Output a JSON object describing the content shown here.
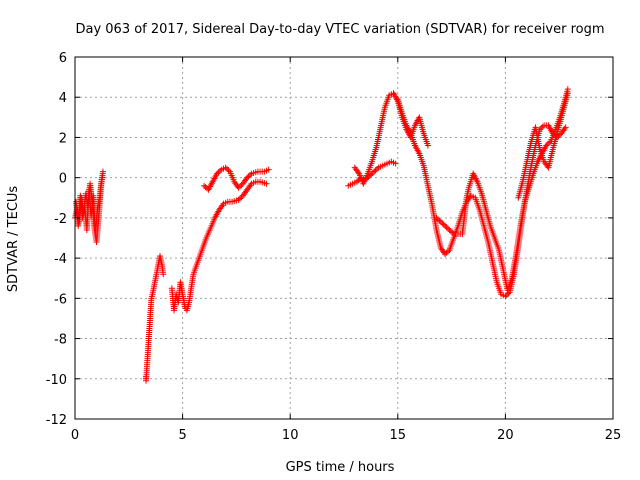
{
  "chart_data": {
    "type": "scatter",
    "title": "Day 063 of 2017, Sidereal Day-to-day VTEC variation (SDTVAR) for receiver rogm",
    "xlabel": "GPS time / hours",
    "ylabel": "SDTVAR / TECUs",
    "xlim": [
      0,
      25
    ],
    "ylim": [
      -12,
      6
    ],
    "xticks": [
      0,
      5,
      10,
      15,
      20,
      25
    ],
    "xtick_labels": [
      "0",
      "5",
      "10",
      "15",
      "20",
      "25"
    ],
    "yticks": [
      -12,
      -10,
      -8,
      -6,
      -4,
      -2,
      0,
      2,
      4,
      6
    ],
    "ytick_labels": [
      "-12",
      "-10",
      "-8",
      "-6",
      "-4",
      "-2",
      "0",
      "2",
      "4",
      "6"
    ],
    "grid": true,
    "marker": "+",
    "color": "#ff0000",
    "series": [
      {
        "name": "",
        "segments": [
          [
            [
              0.0,
              -2.0
            ],
            [
              0.1,
              -1.5
            ],
            [
              0.2,
              -2.2
            ],
            [
              0.3,
              -1.0
            ],
            [
              0.4,
              -1.8
            ],
            [
              0.5,
              -0.8
            ],
            [
              0.6,
              -1.5
            ],
            [
              0.7,
              -0.3
            ],
            [
              0.8,
              -1.2
            ],
            [
              0.9,
              -2.5
            ],
            [
              1.0,
              -3.2
            ],
            [
              1.1,
              -2.0
            ],
            [
              1.2,
              -0.5
            ],
            [
              1.3,
              0.3
            ]
          ],
          [
            [
              0.05,
              -1.2
            ],
            [
              0.15,
              -2.4
            ],
            [
              0.25,
              -0.9
            ],
            [
              0.35,
              -2.0
            ],
            [
              0.45,
              -1.4
            ],
            [
              0.55,
              -2.6
            ],
            [
              0.65,
              -0.6
            ],
            [
              0.75,
              -1.9
            ],
            [
              0.85,
              -0.9
            ],
            [
              0.95,
              -2.8
            ],
            [
              1.05,
              -1.5
            ],
            [
              1.15,
              -1.0
            ],
            [
              1.25,
              0.0
            ]
          ],
          [
            [
              3.3,
              -9.9
            ],
            [
              3.3,
              -10.1
            ],
            [
              3.55,
              -6.0
            ],
            [
              3.6,
              -5.8
            ],
            [
              3.95,
              -3.9
            ],
            [
              4.05,
              -4.4
            ],
            [
              4.1,
              -4.8
            ]
          ],
          [
            [
              4.5,
              -5.5
            ],
            [
              4.6,
              -6.6
            ],
            [
              4.7,
              -5.8
            ],
            [
              4.8,
              -6.2
            ],
            [
              4.9,
              -5.2
            ],
            [
              5.0,
              -5.8
            ],
            [
              5.1,
              -6.4
            ],
            [
              5.2,
              -6.6
            ],
            [
              5.3,
              -6.2
            ],
            [
              5.4,
              -5.5
            ],
            [
              5.5,
              -4.8
            ],
            [
              5.7,
              -4.2
            ],
            [
              5.9,
              -3.6
            ],
            [
              6.1,
              -3.0
            ],
            [
              6.3,
              -2.5
            ],
            [
              6.5,
              -2.0
            ],
            [
              6.7,
              -1.6
            ],
            [
              6.9,
              -1.3
            ],
            [
              7.1,
              -1.2
            ],
            [
              7.3,
              -1.2
            ],
            [
              7.6,
              -1.1
            ],
            [
              7.8,
              -0.9
            ],
            [
              8.0,
              -0.6
            ],
            [
              8.2,
              -0.3
            ],
            [
              8.4,
              -0.2
            ],
            [
              8.6,
              -0.2
            ],
            [
              8.9,
              -0.3
            ]
          ],
          [
            [
              6.0,
              -0.4
            ],
            [
              6.2,
              -0.6
            ],
            [
              6.4,
              -0.2
            ],
            [
              6.6,
              0.2
            ],
            [
              6.8,
              0.4
            ],
            [
              7.0,
              0.5
            ],
            [
              7.2,
              0.3
            ],
            [
              7.4,
              -0.2
            ],
            [
              7.6,
              -0.5
            ],
            [
              7.8,
              -0.3
            ],
            [
              8.0,
              0.0
            ],
            [
              8.2,
              0.2
            ],
            [
              8.5,
              0.3
            ],
            [
              8.8,
              0.3
            ],
            [
              9.0,
              0.4
            ]
          ],
          [
            [
              12.7,
              -0.4
            ],
            [
              12.9,
              -0.3
            ],
            [
              13.1,
              -0.2
            ],
            [
              13.3,
              0.0
            ],
            [
              13.5,
              -0.1
            ],
            [
              13.7,
              0.1
            ],
            [
              13.9,
              0.3
            ],
            [
              14.1,
              0.5
            ],
            [
              14.3,
              0.6
            ],
            [
              14.5,
              0.7
            ],
            [
              14.7,
              0.8
            ],
            [
              14.9,
              0.7
            ]
          ],
          [
            [
              13.0,
              0.5
            ],
            [
              13.2,
              0.2
            ],
            [
              13.4,
              -0.3
            ],
            [
              13.6,
              0.2
            ],
            [
              13.8,
              0.8
            ],
            [
              14.0,
              1.5
            ],
            [
              14.2,
              2.5
            ],
            [
              14.4,
              3.5
            ],
            [
              14.6,
              4.1
            ],
            [
              14.8,
              4.2
            ],
            [
              15.0,
              3.8
            ],
            [
              15.2,
              3.0
            ],
            [
              15.4,
              2.4
            ],
            [
              15.6,
              2.0
            ],
            [
              15.8,
              2.6
            ],
            [
              16.0,
              3.0
            ],
            [
              16.2,
              2.2
            ],
            [
              16.4,
              1.6
            ]
          ],
          [
            [
              15.0,
              3.9
            ],
            [
              15.2,
              3.2
            ],
            [
              15.4,
              2.6
            ],
            [
              15.6,
              2.2
            ],
            [
              15.8,
              1.6
            ],
            [
              16.0,
              1.2
            ],
            [
              16.2,
              0.6
            ],
            [
              16.4,
              -0.4
            ],
            [
              16.6,
              -1.4
            ],
            [
              16.8,
              -2.6
            ],
            [
              17.0,
              -3.5
            ],
            [
              17.2,
              -3.8
            ],
            [
              17.4,
              -3.6
            ],
            [
              17.6,
              -3.0
            ],
            [
              17.8,
              -2.4
            ],
            [
              18.0,
              -1.7
            ],
            [
              18.2,
              -1.2
            ],
            [
              18.4,
              -0.9
            ],
            [
              18.6,
              -1.0
            ],
            [
              18.8,
              -1.6
            ],
            [
              19.0,
              -2.4
            ],
            [
              19.2,
              -3.2
            ],
            [
              19.4,
              -4.2
            ],
            [
              19.6,
              -5.2
            ],
            [
              19.8,
              -5.8
            ],
            [
              20.0,
              -5.9
            ],
            [
              20.2,
              -5.7
            ],
            [
              20.4,
              -4.8
            ],
            [
              20.6,
              -3.4
            ],
            [
              20.8,
              -1.9
            ],
            [
              21.0,
              -0.6
            ],
            [
              21.2,
              0.6
            ],
            [
              21.4,
              1.6
            ],
            [
              21.6,
              2.4
            ],
            [
              21.8,
              2.6
            ],
            [
              22.0,
              2.6
            ],
            [
              22.2,
              2.2
            ],
            [
              22.4,
              2.0
            ],
            [
              22.6,
              2.2
            ],
            [
              22.8,
              2.5
            ]
          ],
          [
            [
              16.8,
              -2.0
            ],
            [
              17.2,
              -2.4
            ],
            [
              17.6,
              -2.8
            ],
            [
              18.0,
              -2.8
            ],
            [
              18.2,
              -1.0
            ],
            [
              18.3,
              -0.5
            ],
            [
              18.5,
              0.2
            ],
            [
              18.7,
              -0.2
            ],
            [
              18.9,
              -0.8
            ],
            [
              19.1,
              -1.6
            ],
            [
              19.3,
              -2.4
            ],
            [
              19.5,
              -3.0
            ],
            [
              19.7,
              -3.6
            ],
            [
              19.9,
              -4.6
            ],
            [
              20.1,
              -5.6
            ],
            [
              20.3,
              -5.0
            ],
            [
              20.5,
              -3.8
            ],
            [
              20.7,
              -2.4
            ],
            [
              20.9,
              -1.2
            ],
            [
              21.1,
              -0.5
            ],
            [
              21.3,
              0.2
            ],
            [
              21.5,
              0.8
            ],
            [
              21.7,
              1.2
            ],
            [
              21.9,
              1.6
            ],
            [
              22.1,
              1.8
            ],
            [
              22.3,
              2.3
            ],
            [
              22.5,
              2.9
            ],
            [
              22.7,
              3.6
            ],
            [
              22.9,
              4.4
            ]
          ],
          [
            [
              20.6,
              -1.0
            ],
            [
              20.8,
              -0.2
            ],
            [
              21.0,
              0.8
            ],
            [
              21.2,
              1.8
            ],
            [
              21.4,
              2.5
            ],
            [
              21.6,
              1.4
            ],
            [
              21.8,
              0.8
            ],
            [
              22.0,
              0.5
            ],
            [
              22.2,
              1.4
            ],
            [
              22.4,
              2.2
            ],
            [
              22.6,
              3.0
            ],
            [
              22.8,
              3.8
            ],
            [
              22.9,
              4.2
            ]
          ]
        ]
      }
    ]
  }
}
